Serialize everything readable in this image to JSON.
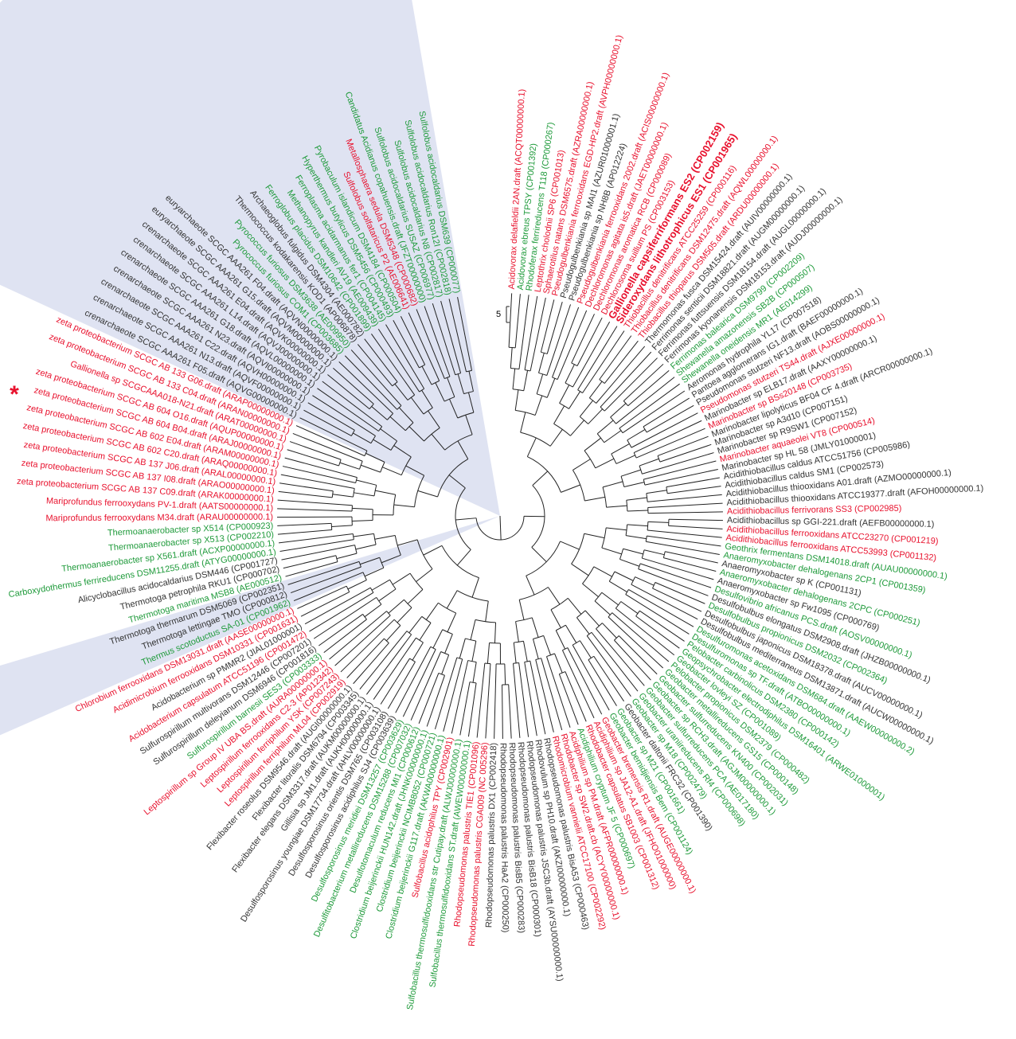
{
  "scale_label": "5",
  "marker": "*",
  "leaves": [
    {
      "label": "Acidovorax delafieldii 2AN.draft (ACQT00000000.1)",
      "color": "#e8112d"
    },
    {
      "label": "Acidovorax ebreus TPSY (CP001392)",
      "color": "#1e9a3a"
    },
    {
      "label": "Rhodoferax ferrireducens T118 (CP000267)",
      "color": "#1e9a3a"
    },
    {
      "label": "Leptothrix cholodnii SP6 (CP001013)",
      "color": "#e8112d"
    },
    {
      "label": "Sphaerotilus natans DSM6575.draft (AZRA00000000.1)",
      "color": "#e8112d"
    },
    {
      "label": "Pseudogulbenkiania ferrooxidans EGD-HP2.draft (AVPH00000000.1)",
      "color": "#e8112d"
    },
    {
      "label": "Pseudogulbenkiania sp MAI1 (AZUR01000001.1)",
      "color": "#333333"
    },
    {
      "label": "Pseudogulbenkiania sp NH8B (AP012224)",
      "color": "#333333"
    },
    {
      "label": "Pseudogulbenkiania ferrooxidans 2002.draft (ACIS00000000.1)",
      "color": "#e8112d"
    },
    {
      "label": "Dechloromonas agitata is5.draft (JAET00000000.1)",
      "color": "#e8112d"
    },
    {
      "label": "Dechloromonas aromatica RCB (CP000089)",
      "color": "#e8112d"
    },
    {
      "label": "Dechlorosoma suillum PS (CP003153)",
      "color": "#e8112d"
    },
    {
      "label": "Gallionella capsiferriformans ES2 (CP002159)",
      "color": "#e8112d",
      "bold": true
    },
    {
      "label": "Sideroxydans lithotrophicus ES1 (CP001965)",
      "color": "#e8112d",
      "bold": true
    },
    {
      "label": "Thiobacillus denitrificans ATCC25259 (CP000116)",
      "color": "#e8112d"
    },
    {
      "label": "Thiobacillus denitrificans DSM12475.draft (AQWL00000000.1)",
      "color": "#e8112d"
    },
    {
      "label": "Thiobacillus thioparus DSM505.draft (ARDU00000000.1)",
      "color": "#e8112d"
    },
    {
      "label": "Thermomonas fusca DSM15424.draft (AUIV00000000.1)",
      "color": "#333333"
    },
    {
      "label": "Ferrimonas senticii DSM18821.draft (AUGM00000000.1)",
      "color": "#333333"
    },
    {
      "label": "Ferrimonas futtsuensis DSM18154.draft (AUGL00000000.1)",
      "color": "#333333"
    },
    {
      "label": "Ferrimonas kyonanensis DSM18153.draft (AUDJ00000000.1)",
      "color": "#333333"
    },
    {
      "label": "Ferrimonas balearica DSM9799 (CP002209)",
      "color": "#1e9a3a"
    },
    {
      "label": "Shewanella amazonensis SB2B (CP000507)",
      "color": "#1e9a3a"
    },
    {
      "label": "Shewanella oneidensis MR1 (AE014299)",
      "color": "#1e9a3a"
    },
    {
      "label": "Aeromonas hydrophila YL17 (CP007518)",
      "color": "#333333"
    },
    {
      "label": "Pantoea agglomerans IG1.draft (BAEF00000000.1)",
      "color": "#333333"
    },
    {
      "label": "Pseudomonas stutzeri NF13.draft (AOBS00000000.1)",
      "color": "#333333"
    },
    {
      "label": "Pseudomonas stutzeri TS44.draft (AJXE00000000.1)",
      "color": "#e8112d"
    },
    {
      "label": "Marinobacter sp ELB17.draft (AAXY00000000.1)",
      "color": "#333333"
    },
    {
      "label": "Marinobacter sp BSs20148 (CP003735)",
      "color": "#e8112d"
    },
    {
      "label": "Marinobacter lipolyticus BF04 CF 4.draft (ARCR00000000.1)",
      "color": "#333333"
    },
    {
      "label": "Marinobacter sp A3d10 (CP007151)",
      "color": "#333333"
    },
    {
      "label": "Marinobacter sp R9SW1 (CP007152)",
      "color": "#333333"
    },
    {
      "label": "Marinobacter aquaeolei VT8 (CP000514)",
      "color": "#e8112d"
    },
    {
      "label": "Marinobacter sp HL 58 (JMLY01000001)",
      "color": "#333333"
    },
    {
      "label": "Acidithiobacillus caldus ATCC51756 (CP005986)",
      "color": "#333333"
    },
    {
      "label": "Acidithiobacillus caldus SM1 (CP002573)",
      "color": "#333333"
    },
    {
      "label": "Acidithiobacillus thiooxidans A01.draft (AZMO00000000.1)",
      "color": "#333333"
    },
    {
      "label": "Acidithiobacillus thiooxidans ATCC19377.draft (AFOH00000000.1)",
      "color": "#333333"
    },
    {
      "label": "Acidithiobacillus ferrivorans SS3 (CP002985)",
      "color": "#e8112d"
    },
    {
      "label": "Acidithiobacillus sp GGI-221.draft (AEFB00000000.1)",
      "color": "#333333"
    },
    {
      "label": "Acidithiobacillus ferrooxidans ATCC23270 (CP001219)",
      "color": "#e8112d"
    },
    {
      "label": "Acidithiobacillus ferrooxidans ATCC53993 (CP001132)",
      "color": "#e8112d"
    },
    {
      "label": "Geothrix fermentans DSM14018.draft (AUAU00000000.1)",
      "color": "#1e9a3a"
    },
    {
      "label": "Anaeromyxobacter dehalogenans 2CP1 (CP001359)",
      "color": "#1e9a3a"
    },
    {
      "label": "Anaeromyxobacter sp K (CP001131)",
      "color": "#333333"
    },
    {
      "label": "Anaeromyxobacter dehalogenans 2CPC (CP000251)",
      "color": "#1e9a3a"
    },
    {
      "label": "Anaeromyxobacter sp Fw1095 (CP000769)",
      "color": "#333333"
    },
    {
      "label": "Desulfovibrio africanus PCS.draft (AOSV00000000.1)",
      "color": "#1e9a3a"
    },
    {
      "label": "Desulfobulbus elongatus DSM2908.draft (JHZB00000000.1)",
      "color": "#333333"
    },
    {
      "label": "Desulfobulbus propionicus DSM2032 (CP002364)",
      "color": "#1e9a3a"
    },
    {
      "label": "Desulfobulbus japonicus DSM18378.draft (AUCV00000000.1)",
      "color": "#333333"
    },
    {
      "label": "Desulfobulbus mediterraneus DSM13871.draft (AUCW00000000.1)",
      "color": "#333333"
    },
    {
      "label": "Desulfuromonas acetoxidans DSM684.draft (AAEW00000000.2)",
      "color": "#1e9a3a"
    },
    {
      "label": "Desulfuromonas sp TF.draft (ATBO00000000.1)",
      "color": "#1e9a3a"
    },
    {
      "label": "Pelobacter carbinolicus DSM2380 (CP000142)",
      "color": "#1e9a3a"
    },
    {
      "label": "Geopsychrobacter electrodiphilus DSM16401 (ARWE01000001)",
      "color": "#1e9a3a"
    },
    {
      "label": "Geobacter lovleyi SZ (CP001089)",
      "color": "#1e9a3a"
    },
    {
      "label": "Pelobacter propionicus DSM2379 (CP000482)",
      "color": "#1e9a3a"
    },
    {
      "label": "Geobacter metallireducens GS15 (CP000148)",
      "color": "#1e9a3a"
    },
    {
      "label": "Geobacter sulfurreducens KN400 (CP002031)",
      "color": "#1e9a3a"
    },
    {
      "label": "Geobacter sp RCH3.draft (AGJM00000000.1)",
      "color": "#1e9a3a"
    },
    {
      "label": "Geobacter sulfurreducens PCA (AE017180)",
      "color": "#1e9a3a"
    },
    {
      "label": "Geobacter uraniireducens Rf4 (CP000698)",
      "color": "#1e9a3a"
    },
    {
      "label": "Geobacter sp M18 (CP002479)",
      "color": "#1e9a3a"
    },
    {
      "label": "Geobacter daltonii FRC32 (CP001390)",
      "color": "#333333"
    },
    {
      "label": "Geobacter sp M21 (CP001661)",
      "color": "#1e9a3a"
    },
    {
      "label": "Geobacter bemidjiensis Bem (CP001124)",
      "color": "#1e9a3a"
    },
    {
      "label": "Geobacter bremensis R1.draft (AUGE00000000.1)",
      "color": "#e8112d"
    },
    {
      "label": "Acidiphilium sp JA12-A1.draft (JFHO01000000)",
      "color": "#e8112d"
    },
    {
      "label": "Rhodobacter capsulatus SB1003 (CP001312)",
      "color": "#e8112d"
    },
    {
      "label": "Acidiphilium cryptum JF 5 (CP000697)",
      "color": "#1e9a3a"
    },
    {
      "label": "Acidiphilium sp PM.draft (AFPR00000000.1)",
      "color": "#e8112d"
    },
    {
      "label": "Rhodobacter sp SW2.draft.cb (ACYY00000000.1)",
      "color": "#e8112d"
    },
    {
      "label": "Rhodomicrobium vannielii ATCC17100 (CP002292)",
      "color": "#e8112d"
    },
    {
      "label": "Rhodopseudomonas palustris BisA53 (CP000463)",
      "color": "#333333"
    },
    {
      "label": "Rhodovulum sp PH10.draft (AKZI00000000.1)",
      "color": "#333333"
    },
    {
      "label": "Rhodopseudomonas palustris JSC3b.draft (AYSU00000000.1)",
      "color": "#333333"
    },
    {
      "label": "Rhodopseudomonas palustris BisB18 (CP000301)",
      "color": "#333333"
    },
    {
      "label": "Rhodopseudomonas palustris BisB5 (CP000283)",
      "color": "#333333"
    },
    {
      "label": "Rhodopseudomonas palustris HaA2 (CP000250)",
      "color": "#333333"
    },
    {
      "label": "Rhodopseudomonas palustris DX1 (CP002418)",
      "color": "#333333"
    },
    {
      "label": "Rhodopseudomonas palustris CGA009 (NC 005296)",
      "color": "#e8112d"
    },
    {
      "label": "Rhodopseudomonas palustris TIE1 (CP001096)",
      "color": "#e8112d"
    },
    {
      "label": "Sulfobacillus thermosulfidooxidans ST.draft (AWEW00000000.1)",
      "color": "#1e9a3a"
    },
    {
      "label": "Sulfobacillus thermosulfidooxidans str Cutipay.draft (ALWJ00000000.1)",
      "color": "#1e9a3a"
    },
    {
      "label": "Sulfobacillus acidophilus TPY (CP002901)",
      "color": "#e8112d"
    },
    {
      "label": "Clostridium beijerinckii G117.draft (AKWA00000000.1)",
      "color": "#1e9a3a"
    },
    {
      "label": "Clostridium beijerinckii NCIMB8052 (CP000721)",
      "color": "#1e9a3a"
    },
    {
      "label": "Clostridium beijerinckii HUN142.draft (JHNK00000000.1)",
      "color": "#1e9a3a"
    },
    {
      "label": "Desulfotomaculum reducens MI1 (CP000612)",
      "color": "#1e9a3a"
    },
    {
      "label": "Desulfitobacterium metallireducens DSM15288 (CP007032)",
      "color": "#1e9a3a"
    },
    {
      "label": "Desulfosporosinus meridiei DSM13257 (CP003629)",
      "color": "#1e9a3a"
    },
    {
      "label": "Desulfosporosinus acidiphilus SJ4 (CP003639)",
      "color": "#333333"
    },
    {
      "label": "Desulfosporosinus orientis DSM765 (CP003108)",
      "color": "#333333"
    },
    {
      "label": "Desulfosporosinus youngiae DSM17734.draft (AHLV00000000.1)",
      "color": "#333333"
    },
    {
      "label": "Gillisia sp JM1.draft (AUKH00000000.1)",
      "color": "#333333"
    },
    {
      "label": "Flexibacter elegans DSM3317.draft (AUKM00000000.1)",
      "color": "#333333"
    },
    {
      "label": "Flexibacter litoralis DSM6794 (CP003345)",
      "color": "#333333"
    },
    {
      "label": "Flexibacter roseolus DSM9546.draft (AUGI00000000.1)",
      "color": "#333333"
    },
    {
      "label": "Leptospirillum ferriphilum ML04 (CP002919)",
      "color": "#e8112d"
    },
    {
      "label": "Leptospirillum ferriphilum YSK (CP007243)",
      "color": "#e8112d"
    },
    {
      "label": "Leptospirillum ferrooxidans C2-3 (AP012342)",
      "color": "#e8112d"
    },
    {
      "label": "Leptospirillum sp Group IV UBA BS.draft (AURA00000000.1)",
      "color": "#e8112d"
    },
    {
      "label": "Sulfurospirillum barnesii SES3 (CP003333)",
      "color": "#1e9a3a"
    },
    {
      "label": "Sulfurospirillum deleyianum DSM6946 (CP001816)",
      "color": "#333333"
    },
    {
      "label": "Sulfurospirillum multivorans DSM12446 (CP007201)",
      "color": "#333333"
    },
    {
      "label": "Acidobacterium capsulatum ATCC51196 (CP001472)",
      "color": "#e8112d"
    },
    {
      "label": "Acidobacterium sp PMMR2 (JIAL01000001)",
      "color": "#333333"
    },
    {
      "label": "Acidimicrobium ferrooxidans DSM10331 (CP001631)",
      "color": "#e8112d"
    },
    {
      "label": "Chlorobium ferrooxidans DSM13031.draft (AASE00000000.1)",
      "color": "#e8112d"
    },
    {
      "label": "Thermus scotoductus SA-01 (CP001962)",
      "color": "#1e9a3a"
    },
    {
      "label": "Thermotoga lettingae TMO (CP000812)",
      "color": "#333333"
    },
    {
      "label": "Thermotoga thermarum DSM5069 (CP002351)",
      "color": "#333333"
    },
    {
      "label": "Thermotoga maritima MSB8 (AE000512)",
      "color": "#1e9a3a"
    },
    {
      "label": "Thermotoga petrophila RKU1 (CP000702)",
      "color": "#333333"
    },
    {
      "label": "Alicyclobacillus acidocaldarius DSM446 (CP001727)",
      "color": "#333333"
    },
    {
      "label": "Carboxydothermus ferrireducens DSM11255.draft (ATYG00000000.1)",
      "color": "#1e9a3a"
    },
    {
      "label": "Thermoanaerobacter sp X561.draft (ACXP00000000.1)",
      "color": "#1e9a3a"
    },
    {
      "label": "Thermoanaerobacter sp X513 (CP002210)",
      "color": "#1e9a3a"
    },
    {
      "label": "Thermoanaerobacter sp X514 (CP000923)",
      "color": "#1e9a3a"
    },
    {
      "label": "Mariprofundus ferrooxydans M34.draft (ARAU00000000.1)",
      "color": "#e8112d"
    },
    {
      "label": "Mariprofundus ferrooxydans PV-1.draft (AATS00000000.1)",
      "color": "#e8112d"
    },
    {
      "label": "zeta proteobacterium SCGC AB 137 C09.draft (ARAK00000000.1)",
      "color": "#e8112d"
    },
    {
      "label": "zeta proteobacterium SCGC AB 137 I08.draft (ARAO00000000.1)",
      "color": "#e8112d"
    },
    {
      "label": "zeta proteobacterium SCGC AB 137 J06.draft (ARAL00000000.1)",
      "color": "#e8112d"
    },
    {
      "label": "zeta proteobacterium SCGC AB 602 C20.draft (ARAQ00000000.1)",
      "color": "#e8112d"
    },
    {
      "label": "zeta proteobacterium SCGC AB 602 E04.draft (ARAM00000000.1)",
      "color": "#e8112d"
    },
    {
      "label": "zeta proteobacterium SCGC AB 604 B04.draft (ARAJ00000000.1)",
      "color": "#e8112d"
    },
    {
      "label": "zeta proteobacterium SCGC AB 604 O16.draft (AQUP00000000.1)",
      "color": "#e8112d"
    },
    {
      "label": "Gallionella sp SCGCAAA018-N21.draft (ARAT00000000.1)",
      "color": "#e8112d"
    },
    {
      "label": "zeta proteobacterium SCGC AB 133 C04.draft (ARAN00000000.1)",
      "color": "#e8112d"
    },
    {
      "label": "zeta proteobacterium SCGC AB 133 G06.draft (ARAP00000000.1)",
      "color": "#e8112d"
    },
    {
      "label": "crenarchaeote SCGC AAA261 F05.draft (AQVG00000000.1)",
      "color": "#333333"
    },
    {
      "label": "crenarchaeote SCGC AAA261 N13.draft (AQVF00000000.1)",
      "color": "#333333"
    },
    {
      "label": "crenarchaeote SCGC AAA261 C22.draft (AQVH00000000.1)",
      "color": "#333333"
    },
    {
      "label": "crenarchaeote SCGC AAA261 N23.draft (AQVI00000000.1)",
      "color": "#333333"
    },
    {
      "label": "crenarchaeote SCGC AAA261 G18.draft (AQVL00000000.1)",
      "color": "#333333"
    },
    {
      "label": "crenarchaeote SCGC AAA261 L14.draft (AQVJ00000000.1)",
      "color": "#333333"
    },
    {
      "label": "crenarchaeote SCGC AAA261 E04.draft (AQVK00000000.1)",
      "color": "#333333"
    },
    {
      "label": "euryarchaeote SCGC AAA261 G15.draft (AQVM00000000.1)",
      "color": "#333333"
    },
    {
      "label": "euryarchaeote SCGC AAA261 F04.draft (AQVN00000000.1)",
      "color": "#333333"
    },
    {
      "label": "Pyrococcus furiosus COM1 (CP003685)",
      "color": "#1e9a3a"
    },
    {
      "label": "Pyrococcus furiosus DSM3638 (AE009950)",
      "color": "#1e9a3a"
    },
    {
      "label": "Thermococcus kodakarensis KOD1 (AP006878)",
      "color": "#333333"
    },
    {
      "label": "Archaeoglobus fulgidus DSM4304 (AE000782)",
      "color": "#333333"
    },
    {
      "label": "Ferroglobus placidus DSM10642 (CP001899)",
      "color": "#1e9a3a"
    },
    {
      "label": "Methanopyrus kandleri AV19 (AE009439)",
      "color": "#1e9a3a"
    },
    {
      "label": "Ferroplasma acidarmanus fer1 (CP004145)",
      "color": "#1e9a3a"
    },
    {
      "label": "Hyperthermus butylicus DSM5456 (CP000493)",
      "color": "#1e9a3a"
    },
    {
      "label": "Pyrobaculum islandicum DSM4184 (CP000504)",
      "color": "#1e9a3a"
    },
    {
      "label": "Sulfolobus solfataricus P2 (AE006641)",
      "color": "#e8112d"
    },
    {
      "label": "Metallosphaera sedula DSM5348 (CP000682)",
      "color": "#e8112d"
    },
    {
      "label": "Candidatus Acidianus copahuensis.draft (JFZT00000000)",
      "color": "#1e9a3a"
    },
    {
      "label": "Sulfolobus acidocaldarius SUSAZ (CP006977)",
      "color": "#1e9a3a"
    },
    {
      "label": "Sulfolobus acidocaldarius N8 (CP002817)",
      "color": "#1e9a3a"
    },
    {
      "label": "Sulfolobus acidocaldarius Ron12I (CP002818)",
      "color": "#1e9a3a"
    },
    {
      "label": "Sulfolobus acidocaldarius DSM639 (CP000077)",
      "color": "#1e9a3a"
    }
  ]
}
